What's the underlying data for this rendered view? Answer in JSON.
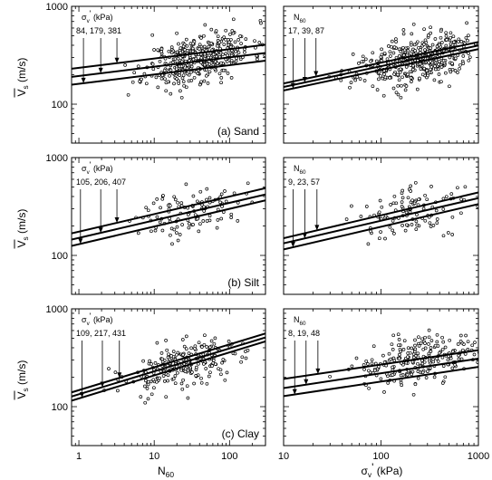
{
  "figure": {
    "y_axis_label": "V",
    "y_axis_subscript": "s",
    "y_axis_unit": " (m/s)",
    "x_axis_left": {
      "label": "N",
      "subscript": "60",
      "suffix": ""
    },
    "x_axis_right": {
      "label": "σ",
      "subscript": "v",
      "prime": "'",
      "suffix": " (kPa)"
    }
  },
  "chart_data": [
    {
      "type": "scatter",
      "panel": "sand-vs-n60",
      "column": 0,
      "row": 0,
      "xscale": "log",
      "yscale": "log",
      "xlim": [
        0.8,
        300
      ],
      "ylim": [
        40,
        1000
      ],
      "panel_label": "(a) Sand",
      "legend": {
        "symbol": "σ",
        "subscript": "v",
        "prime": "'",
        "unit": " (kPa)",
        "values": "84,  179,  381"
      },
      "arrow_x": [
        1.15,
        1.95,
        3.2
      ],
      "fits": [
        {
          "x": [
            0.8,
            300
          ],
          "y": [
            158,
            278
          ]
        },
        {
          "x": [
            0.8,
            300
          ],
          "y": [
            190,
            334
          ]
        },
        {
          "x": [
            0.8,
            300
          ],
          "y": [
            230,
            405
          ]
        }
      ],
      "cloud": {
        "center_log_x": 1.6,
        "spread_log_x": 0.35,
        "center_log_y": 2.47,
        "spread_log_y": 0.12,
        "n": 420,
        "seed": 11
      }
    },
    {
      "type": "scatter",
      "panel": "sand-vs-sigma",
      "column": 1,
      "row": 0,
      "xscale": "log",
      "yscale": "log",
      "xlim": [
        10,
        1000
      ],
      "ylim": [
        40,
        1000
      ],
      "panel_label": "",
      "legend": {
        "symbol": "N",
        "subscript": "60",
        "prime": "",
        "unit": "",
        "values": "17,  39,  87"
      },
      "arrow_x": [
        12.5,
        16.5,
        21.5
      ],
      "fits": [
        {
          "x": [
            10,
            1000
          ],
          "y": [
            138,
            365
          ]
        },
        {
          "x": [
            10,
            1000
          ],
          "y": [
            150,
            398
          ]
        },
        {
          "x": [
            10,
            1000
          ],
          "y": [
            163,
            432
          ]
        }
      ],
      "cloud": {
        "center_log_x": 2.35,
        "spread_log_x": 0.3,
        "center_log_y": 2.45,
        "spread_log_y": 0.12,
        "n": 420,
        "seed": 23
      }
    },
    {
      "type": "scatter",
      "panel": "silt-vs-n60",
      "column": 0,
      "row": 1,
      "xscale": "log",
      "yscale": "log",
      "xlim": [
        0.8,
        300
      ],
      "ylim": [
        40,
        1000
      ],
      "panel_label": "(b) Silt",
      "legend": {
        "symbol": "σ",
        "subscript": "v",
        "prime": "'",
        "unit": " (kPa)",
        "values": "105,  206,  407"
      },
      "arrow_x": [
        1.05,
        1.95,
        3.2
      ],
      "fits": [
        {
          "x": [
            0.8,
            300
          ],
          "y": [
            125,
            365
          ]
        },
        {
          "x": [
            0.8,
            300
          ],
          "y": [
            145,
            420
          ]
        },
        {
          "x": [
            0.8,
            300
          ],
          "y": [
            168,
            487
          ]
        }
      ],
      "cloud": {
        "center_log_x": 1.5,
        "spread_log_x": 0.35,
        "center_log_y": 2.45,
        "spread_log_y": 0.12,
        "n": 110,
        "seed": 37
      }
    },
    {
      "type": "scatter",
      "panel": "silt-vs-sigma",
      "column": 1,
      "row": 1,
      "xscale": "log",
      "yscale": "log",
      "xlim": [
        10,
        1000
      ],
      "ylim": [
        40,
        1000
      ],
      "panel_label": "",
      "legend": {
        "symbol": "N",
        "subscript": "60",
        "prime": "",
        "unit": "",
        "values": "9,  23,  57"
      },
      "arrow_x": [
        12.5,
        16.5,
        22.0
      ],
      "fits": [
        {
          "x": [
            10,
            1000
          ],
          "y": [
            115,
            335
          ]
        },
        {
          "x": [
            10,
            1000
          ],
          "y": [
            133,
            385
          ]
        },
        {
          "x": [
            10,
            1000
          ],
          "y": [
            150,
            440
          ]
        }
      ],
      "cloud": {
        "center_log_x": 2.35,
        "spread_log_x": 0.3,
        "center_log_y": 2.45,
        "spread_log_y": 0.12,
        "n": 110,
        "seed": 41
      }
    },
    {
      "type": "scatter",
      "panel": "clay-vs-n60",
      "column": 0,
      "row": 2,
      "xscale": "log",
      "yscale": "log",
      "xlim": [
        0.8,
        300
      ],
      "ylim": [
        40,
        1000
      ],
      "panel_label": "(c) Clay",
      "legend": {
        "symbol": "σ",
        "subscript": "v",
        "prime": "'",
        "unit": " (kPa)",
        "values": "109,  217,  431"
      },
      "arrow_x": [
        1.1,
        2.05,
        3.45
      ],
      "fits": [
        {
          "x": [
            0.8,
            300
          ],
          "y": [
            115,
            465
          ]
        },
        {
          "x": [
            0.8,
            300
          ],
          "y": [
            127,
            510
          ]
        },
        {
          "x": [
            0.8,
            300
          ],
          "y": [
            140,
            560
          ]
        }
      ],
      "cloud": {
        "center_log_x": 1.4,
        "spread_log_x": 0.4,
        "center_log_y": 2.42,
        "spread_log_y": 0.12,
        "n": 240,
        "seed": 53
      }
    },
    {
      "type": "scatter",
      "panel": "clay-vs-sigma",
      "column": 1,
      "row": 2,
      "xscale": "log",
      "yscale": "log",
      "xlim": [
        10,
        1000
      ],
      "ylim": [
        40,
        1000
      ],
      "panel_label": "",
      "legend": {
        "symbol": "N",
        "subscript": "60",
        "prime": "",
        "unit": "",
        "values": "8,  19,  48"
      },
      "arrow_x": [
        13.0,
        17.0,
        22.5
      ],
      "fits": [
        {
          "x": [
            10,
            1000
          ],
          "y": [
            128,
            255
          ]
        },
        {
          "x": [
            10,
            1000
          ],
          "y": [
            155,
            310
          ]
        },
        {
          "x": [
            10,
            1000
          ],
          "y": [
            192,
            378
          ]
        }
      ],
      "cloud": {
        "center_log_x": 2.35,
        "spread_log_x": 0.3,
        "center_log_y": 2.45,
        "spread_log_y": 0.12,
        "n": 240,
        "seed": 67
      }
    }
  ],
  "axis_ticks": {
    "y": [
      "100",
      "1000"
    ],
    "x_left": [
      "1",
      "10",
      "100"
    ],
    "x_right": [
      "10",
      "100",
      "1000"
    ]
  }
}
